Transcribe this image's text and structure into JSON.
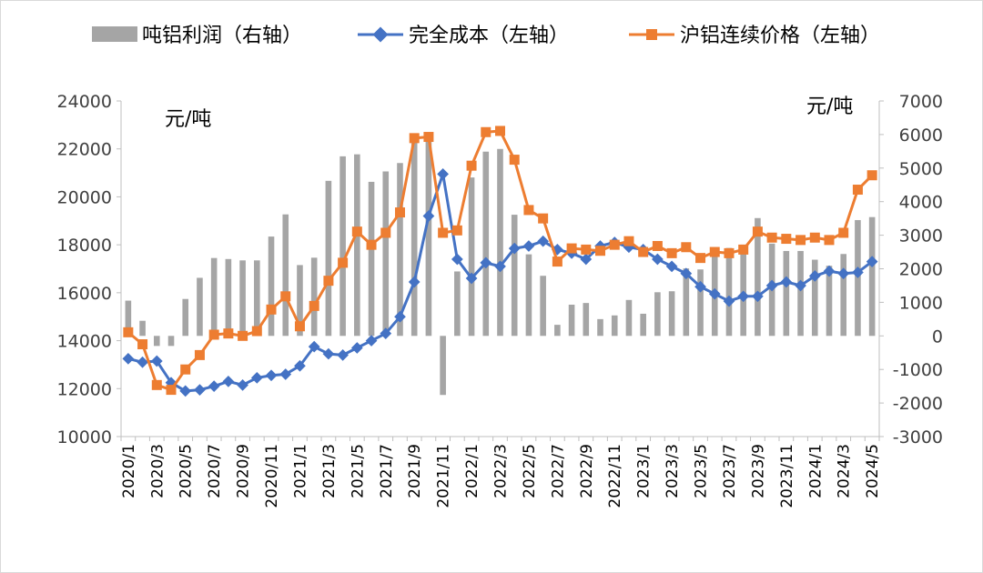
{
  "chart_data": {
    "type": "bar+line",
    "title": "",
    "unit_left": "元/吨",
    "unit_right": "元/吨",
    "left_axis": {
      "min": 10000,
      "max": 24000,
      "ticks": [
        "10000",
        "12000",
        "14000",
        "16000",
        "18000",
        "20000",
        "22000",
        "24000"
      ]
    },
    "right_axis": {
      "min": -3000,
      "max": 7000,
      "ticks": [
        "-3000",
        "-2000",
        "-1000",
        "0",
        "1000",
        "2000",
        "3000",
        "4000",
        "5000",
        "6000",
        "7000"
      ]
    },
    "categories": [
      "2020/1",
      "2020/2",
      "2020/3",
      "2020/4",
      "2020/5",
      "2020/6",
      "2020/7",
      "2020/8",
      "2020/9",
      "2020/10",
      "2020/11",
      "2020/12",
      "2021/1",
      "2021/2",
      "2021/3",
      "2021/4",
      "2021/5",
      "2021/6",
      "2021/7",
      "2021/8",
      "2021/9",
      "2021/10",
      "2021/11",
      "2021/12",
      "2022/1",
      "2022/2",
      "2022/3",
      "2022/4",
      "2022/5",
      "2022/6",
      "2022/7",
      "2022/8",
      "2022/9",
      "2022/10",
      "2022/11",
      "2022/12",
      "2023/1",
      "2023/2",
      "2023/3",
      "2023/4",
      "2023/5",
      "2023/6",
      "2023/7",
      "2023/8",
      "2023/9",
      "2023/10",
      "2023/11",
      "2023/12",
      "2024/1",
      "2024/2",
      "2024/3",
      "2024/4",
      "2024/5"
    ],
    "x_tick_labels": [
      "2020/1",
      "2020/3",
      "2020/5",
      "2020/7",
      "2020/9",
      "2020/11",
      "2021/1",
      "2021/3",
      "2021/5",
      "2021/7",
      "2021/9",
      "2021/11",
      "2022/1",
      "2022/3",
      "2022/5",
      "2022/7",
      "2022/9",
      "2022/11",
      "2023/1",
      "2023/3",
      "2023/5",
      "2023/7",
      "2023/9",
      "2023/11",
      "2024/1",
      "2024/3",
      "2024/5"
    ],
    "legend": [
      "吨铝利润（右轴）",
      "完全成本（左轴）",
      "沪铝连续价格（左轴）"
    ],
    "series": [
      {
        "name": "吨铝利润（右轴）",
        "type": "bar",
        "axis": "right",
        "color": "#a5a5a5",
        "values": [
          1050,
          450,
          -300,
          -300,
          1100,
          1730,
          2320,
          2290,
          2250,
          2250,
          2960,
          3620,
          2110,
          2330,
          4620,
          5350,
          5410,
          4590,
          4900,
          5150,
          5950,
          5990,
          -1760,
          1920,
          4720,
          5490,
          5570,
          3610,
          2430,
          1790,
          330,
          930,
          980,
          500,
          610,
          1070,
          660,
          1300,
          1330,
          2010,
          1980,
          2450,
          2620,
          2720,
          3510,
          2750,
          2530,
          2530,
          2270,
          2090,
          2440,
          3450,
          3540
        ]
      },
      {
        "name": "完全成本（左轴）",
        "type": "line",
        "axis": "left",
        "color": "#4472c4",
        "marker": "diamond",
        "values": [
          13250,
          13100,
          13150,
          12250,
          11900,
          11950,
          12100,
          12300,
          12150,
          12450,
          12550,
          12600,
          12950,
          13750,
          13450,
          13400,
          13700,
          14000,
          14300,
          15000,
          16450,
          19200,
          20950,
          17400,
          16600,
          17250,
          17100,
          17850,
          17950,
          18150,
          17800,
          17650,
          17400,
          17950,
          18100,
          17900,
          17800,
          17400,
          17100,
          16800,
          16250,
          15950,
          15650,
          15850,
          15850,
          16300,
          16450,
          16300,
          16700,
          16900,
          16800,
          16850,
          17300
        ]
      },
      {
        "name": "沪铝连续价格（左轴）",
        "type": "line",
        "axis": "left",
        "color": "#ed7d31",
        "marker": "square",
        "values": [
          14350,
          13850,
          12150,
          11950,
          12800,
          13400,
          14250,
          14300,
          14200,
          14400,
          15300,
          15850,
          14600,
          15450,
          16500,
          17250,
          18550,
          18000,
          18500,
          19350,
          22450,
          22500,
          18500,
          18600,
          21300,
          22700,
          22750,
          21550,
          19450,
          19100,
          17300,
          17850,
          17800,
          17750,
          18000,
          18150,
          17700,
          17950,
          17650,
          17900,
          17450,
          17700,
          17650,
          17800,
          18550,
          18300,
          18250,
          18200,
          18300,
          18200,
          18500,
          20300,
          20900
        ]
      }
    ]
  }
}
